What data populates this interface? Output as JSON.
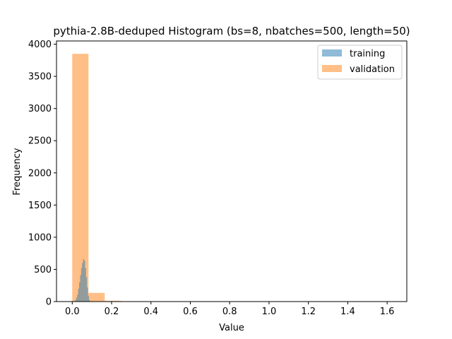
{
  "chart_data": {
    "type": "histogram",
    "title": "pythia-2.8B-deduped Histogram (bs=8, nbatches=500, length=50)",
    "xlabel": "Value",
    "ylabel": "Frequency",
    "xlim": [
      -0.08,
      1.7
    ],
    "ylim": [
      0,
      4050
    ],
    "xticks": [
      "0.0",
      "0.2",
      "0.4",
      "0.6",
      "0.8",
      "1.0",
      "1.2",
      "1.4",
      "1.6"
    ],
    "xtick_values": [
      0.0,
      0.2,
      0.4,
      0.6,
      0.8,
      1.0,
      1.2,
      1.4,
      1.6
    ],
    "yticks": [
      "0",
      "500",
      "1000",
      "1500",
      "2000",
      "2500",
      "3000",
      "3500",
      "4000"
    ],
    "ytick_values": [
      0,
      500,
      1000,
      1500,
      2000,
      2500,
      3000,
      3500,
      4000
    ],
    "grid": false,
    "legend_position": "top-right",
    "series": [
      {
        "name": "training",
        "color": "#1f77b4",
        "opacity": 0.5,
        "bin_edges": [
          0.01,
          0.015,
          0.02,
          0.025,
          0.03,
          0.035,
          0.04,
          0.045,
          0.05,
          0.055,
          0.06,
          0.065,
          0.07,
          0.075,
          0.08,
          0.085,
          0.09
        ],
        "counts": [
          8,
          25,
          60,
          110,
          200,
          300,
          410,
          520,
          600,
          660,
          640,
          520,
          380,
          220,
          90,
          25
        ]
      },
      {
        "name": "validation",
        "color": "#ff7f0e",
        "opacity": 0.5,
        "bin_edges": [
          0.0,
          0.0825,
          0.165,
          0.2475,
          0.33,
          0.4125,
          0.495,
          0.5775,
          0.66,
          0.7425,
          0.825,
          0.9075,
          0.99,
          1.0725,
          1.155,
          1.2375,
          1.32,
          1.4025,
          1.485,
          1.5675,
          1.65
        ],
        "counts": [
          3850,
          135,
          12,
          3,
          1,
          1,
          0,
          0,
          0,
          0,
          0,
          0,
          0,
          0,
          0,
          0,
          0,
          0,
          0,
          1
        ]
      }
    ]
  }
}
